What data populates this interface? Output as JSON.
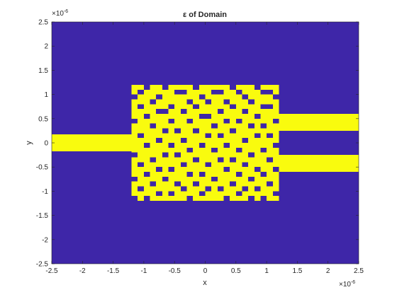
{
  "chart_data": {
    "type": "heatmap",
    "title": "ε of Domain",
    "xlabel": "x",
    "ylabel": "y",
    "xlim": [
      -2.5,
      2.5
    ],
    "ylim": [
      -2.5,
      2.5
    ],
    "x_exponent_label": "×10",
    "x_exponent": "-6",
    "y_exponent_label": "×10",
    "y_exponent": "-6",
    "xticks": [
      -2.5,
      -2,
      -1.5,
      -1,
      -0.5,
      0,
      0.5,
      1,
      1.5,
      2,
      2.5
    ],
    "xtick_labels": [
      "-2.5",
      "-2",
      "-1.5",
      "-1",
      "-0.5",
      "0",
      "0.5",
      "1",
      "1.5",
      "2",
      "2.5"
    ],
    "yticks": [
      -2.5,
      -2,
      -1.5,
      -1,
      -0.5,
      0,
      0.5,
      1,
      1.5,
      2,
      2.5
    ],
    "ytick_labels": [
      "-2.5",
      "-2",
      "-1.5",
      "-1",
      "-0.5",
      "0",
      "0.5",
      "1",
      "1.5",
      "2",
      "2.5"
    ],
    "colors": {
      "background": "#3e26a8",
      "material": "#f9fb0e"
    },
    "waveguides": [
      {
        "x": [
          -2.5,
          -1.2
        ],
        "y": [
          -0.175,
          0.175
        ]
      },
      {
        "x": [
          1.2,
          2.5
        ],
        "y": [
          0.25,
          0.6
        ]
      },
      {
        "x": [
          1.2,
          2.5
        ],
        "y": [
          -0.6,
          -0.25
        ]
      }
    ],
    "design_region": {
      "x": [
        -1.2,
        1.2
      ],
      "y": [
        -1.2,
        1.2
      ],
      "cols": 24,
      "rows": 24,
      "holes": [
        [
          0,
          2
        ],
        [
          0,
          5
        ],
        [
          0,
          10
        ],
        [
          0,
          16
        ],
        [
          0,
          20
        ],
        [
          1,
          1
        ],
        [
          1,
          7
        ],
        [
          1,
          8
        ],
        [
          1,
          13
        ],
        [
          1,
          14
        ],
        [
          1,
          17
        ],
        [
          1,
          21
        ],
        [
          1,
          22
        ],
        [
          2,
          0
        ],
        [
          2,
          4
        ],
        [
          2,
          11
        ],
        [
          2,
          18
        ],
        [
          2,
          23
        ],
        [
          3,
          3
        ],
        [
          3,
          9
        ],
        [
          3,
          12
        ],
        [
          3,
          15
        ],
        [
          3,
          19
        ],
        [
          4,
          1
        ],
        [
          4,
          6
        ],
        [
          4,
          10
        ],
        [
          4,
          16
        ],
        [
          4,
          21
        ],
        [
          4,
          22
        ],
        [
          5,
          4
        ],
        [
          5,
          5
        ],
        [
          5,
          8
        ],
        [
          5,
          14
        ],
        [
          5,
          18
        ],
        [
          6,
          2
        ],
        [
          6,
          11
        ],
        [
          6,
          12
        ],
        [
          6,
          20
        ],
        [
          7,
          0
        ],
        [
          7,
          6
        ],
        [
          7,
          9
        ],
        [
          7,
          15
        ],
        [
          7,
          17
        ],
        [
          7,
          23
        ],
        [
          8,
          3
        ],
        [
          8,
          13
        ],
        [
          8,
          19
        ],
        [
          8,
          21
        ],
        [
          9,
          5
        ],
        [
          9,
          7
        ],
        [
          9,
          10
        ],
        [
          9,
          16
        ],
        [
          10,
          1
        ],
        [
          10,
          12
        ],
        [
          10,
          14
        ],
        [
          10,
          20
        ],
        [
          10,
          22
        ],
        [
          11,
          4
        ],
        [
          11,
          8
        ],
        [
          11,
          18
        ],
        [
          12,
          2
        ],
        [
          12,
          6
        ],
        [
          12,
          11
        ],
        [
          12,
          15
        ],
        [
          12,
          23
        ],
        [
          13,
          9
        ],
        [
          13,
          13
        ],
        [
          13,
          17
        ],
        [
          13,
          21
        ],
        [
          14,
          0
        ],
        [
          14,
          5
        ],
        [
          14,
          7
        ],
        [
          14,
          19
        ],
        [
          15,
          3
        ],
        [
          15,
          10
        ],
        [
          15,
          14
        ],
        [
          15,
          16
        ],
        [
          15,
          22
        ],
        [
          16,
          1
        ],
        [
          16,
          8
        ],
        [
          16,
          12
        ],
        [
          16,
          18
        ],
        [
          17,
          4
        ],
        [
          17,
          6
        ],
        [
          17,
          15
        ],
        [
          17,
          20
        ],
        [
          17,
          23
        ],
        [
          18,
          2
        ],
        [
          18,
          9
        ],
        [
          18,
          11
        ],
        [
          18,
          17
        ],
        [
          18,
          21
        ],
        [
          19,
          0
        ],
        [
          19,
          5
        ],
        [
          19,
          13
        ],
        [
          19,
          19
        ],
        [
          20,
          3
        ],
        [
          20,
          7
        ],
        [
          20,
          10
        ],
        [
          20,
          16
        ],
        [
          20,
          22
        ],
        [
          21,
          1
        ],
        [
          21,
          8
        ],
        [
          21,
          12
        ],
        [
          21,
          14
        ],
        [
          21,
          18
        ],
        [
          21,
          20
        ],
        [
          22,
          4
        ],
        [
          22,
          6
        ],
        [
          22,
          11
        ],
        [
          22,
          17
        ],
        [
          22,
          23
        ],
        [
          23,
          0
        ],
        [
          23,
          2
        ],
        [
          23,
          9
        ],
        [
          23,
          15
        ],
        [
          23,
          19
        ],
        [
          23,
          21
        ]
      ]
    }
  }
}
